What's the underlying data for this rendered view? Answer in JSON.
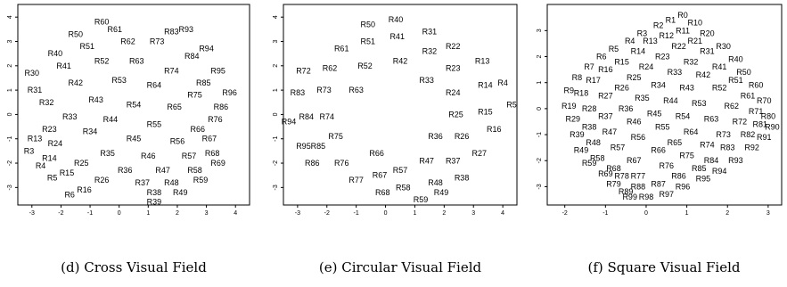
{
  "chart_data": [
    {
      "type": "scatter",
      "caption": "(d) Cross Visual Field",
      "xlim": [
        -3.3,
        4.3
      ],
      "ylim": [
        -3.5,
        4.3
      ],
      "xticks": [
        -3,
        -2,
        -1,
        0,
        1,
        2,
        3,
        4
      ],
      "yticks": [
        -3,
        -2,
        -1,
        0,
        1,
        2,
        3,
        4
      ],
      "points": [
        {
          "label": "R60",
          "x": -0.6,
          "y": 3.8
        },
        {
          "label": "R61",
          "x": -0.15,
          "y": 3.5
        },
        {
          "label": "R50",
          "x": -1.5,
          "y": 3.3
        },
        {
          "label": "R83",
          "x": 1.8,
          "y": 3.4
        },
        {
          "label": "R93",
          "x": 2.3,
          "y": 3.5
        },
        {
          "label": "R51",
          "x": -1.1,
          "y": 2.8
        },
        {
          "label": "R62",
          "x": 0.3,
          "y": 3.0
        },
        {
          "label": "R73",
          "x": 1.3,
          "y": 3.0
        },
        {
          "label": "R94",
          "x": 3.0,
          "y": 2.7
        },
        {
          "label": "R40",
          "x": -2.2,
          "y": 2.5
        },
        {
          "label": "R84",
          "x": 2.5,
          "y": 2.4
        },
        {
          "label": "R52",
          "x": -0.6,
          "y": 2.2
        },
        {
          "label": "R63",
          "x": 0.6,
          "y": 2.2
        },
        {
          "label": "R41",
          "x": -1.9,
          "y": 2.0
        },
        {
          "label": "R74",
          "x": 1.8,
          "y": 1.8
        },
        {
          "label": "R95",
          "x": 3.4,
          "y": 1.8
        },
        {
          "label": "R30",
          "x": -3.0,
          "y": 1.7
        },
        {
          "label": "R53",
          "x": 0.0,
          "y": 1.4
        },
        {
          "label": "R85",
          "x": 2.9,
          "y": 1.3
        },
        {
          "label": "R42",
          "x": -1.5,
          "y": 1.3
        },
        {
          "label": "R64",
          "x": 1.2,
          "y": 1.2
        },
        {
          "label": "R31",
          "x": -2.9,
          "y": 1.0
        },
        {
          "label": "R96",
          "x": 3.8,
          "y": 0.9
        },
        {
          "label": "R75",
          "x": 2.6,
          "y": 0.8
        },
        {
          "label": "R32",
          "x": -2.5,
          "y": 0.5
        },
        {
          "label": "R54",
          "x": 0.5,
          "y": 0.4
        },
        {
          "label": "R43",
          "x": -0.8,
          "y": 0.6
        },
        {
          "label": "R86",
          "x": 3.5,
          "y": 0.3
        },
        {
          "label": "R65",
          "x": 1.9,
          "y": 0.3
        },
        {
          "label": "R33",
          "x": -1.7,
          "y": -0.1
        },
        {
          "label": "R76",
          "x": 3.3,
          "y": -0.2
        },
        {
          "label": "R44",
          "x": -0.3,
          "y": -0.2
        },
        {
          "label": "R55",
          "x": 1.2,
          "y": -0.4
        },
        {
          "label": "R23",
          "x": -2.4,
          "y": -0.6
        },
        {
          "label": "R66",
          "x": 2.7,
          "y": -0.6
        },
        {
          "label": "R34",
          "x": -1.0,
          "y": -0.7
        },
        {
          "label": "R13",
          "x": -2.9,
          "y": -1.0
        },
        {
          "label": "R45",
          "x": 0.5,
          "y": -1.0
        },
        {
          "label": "R56",
          "x": 2.0,
          "y": -1.1
        },
        {
          "label": "R67",
          "x": 3.1,
          "y": -1.0
        },
        {
          "label": "R24",
          "x": -2.2,
          "y": -1.2
        },
        {
          "label": "R3",
          "x": -3.1,
          "y": -1.5
        },
        {
          "label": "R35",
          "x": -0.4,
          "y": -1.6
        },
        {
          "label": "R68",
          "x": 3.2,
          "y": -1.6
        },
        {
          "label": "R14",
          "x": -2.4,
          "y": -1.8
        },
        {
          "label": "R57",
          "x": 2.4,
          "y": -1.7
        },
        {
          "label": "R46",
          "x": 1.0,
          "y": -1.7
        },
        {
          "label": "R25",
          "x": -1.3,
          "y": -2.0
        },
        {
          "label": "R69",
          "x": 3.4,
          "y": -2.0
        },
        {
          "label": "R4",
          "x": -2.7,
          "y": -2.1
        },
        {
          "label": "R36",
          "x": 0.2,
          "y": -2.3
        },
        {
          "label": "R47",
          "x": 1.5,
          "y": -2.3
        },
        {
          "label": "R58",
          "x": 2.6,
          "y": -2.3
        },
        {
          "label": "R15",
          "x": -1.8,
          "y": -2.4
        },
        {
          "label": "R5",
          "x": -2.3,
          "y": -2.6
        },
        {
          "label": "R26",
          "x": -0.6,
          "y": -2.7
        },
        {
          "label": "R37",
          "x": 0.8,
          "y": -2.8
        },
        {
          "label": "R48",
          "x": 1.8,
          "y": -2.8
        },
        {
          "label": "R59",
          "x": 2.8,
          "y": -2.7
        },
        {
          "label": "R16",
          "x": -1.2,
          "y": -3.1
        },
        {
          "label": "R6",
          "x": -1.7,
          "y": -3.3
        },
        {
          "label": "R38",
          "x": 1.2,
          "y": -3.2
        },
        {
          "label": "R49",
          "x": 2.1,
          "y": -3.2
        },
        {
          "label": "R39",
          "x": 1.2,
          "y": -3.6
        }
      ]
    },
    {
      "type": "scatter",
      "caption": "(e) Circular Visual Field",
      "xlim": [
        -3.3,
        4.3
      ],
      "ylim": [
        -3.5,
        4.3
      ],
      "xticks": [
        -3,
        -2,
        -1,
        0,
        1,
        2,
        3,
        4
      ],
      "yticks": [
        -3,
        -2,
        -1,
        0,
        1,
        2,
        3,
        4
      ],
      "points": [
        {
          "label": "R50",
          "x": -0.6,
          "y": 3.7
        },
        {
          "label": "R40",
          "x": 0.35,
          "y": 3.9
        },
        {
          "label": "R31",
          "x": 1.5,
          "y": 3.4
        },
        {
          "label": "R51",
          "x": -0.6,
          "y": 3.0
        },
        {
          "label": "R41",
          "x": 0.4,
          "y": 3.2
        },
        {
          "label": "R22",
          "x": 2.3,
          "y": 2.8
        },
        {
          "label": "R61",
          "x": -1.5,
          "y": 2.7
        },
        {
          "label": "R32",
          "x": 1.5,
          "y": 2.6
        },
        {
          "label": "R42",
          "x": 0.5,
          "y": 2.2
        },
        {
          "label": "R13",
          "x": 3.3,
          "y": 2.2
        },
        {
          "label": "R52",
          "x": -0.7,
          "y": 2.0
        },
        {
          "label": "R62",
          "x": -1.9,
          "y": 1.9
        },
        {
          "label": "R72",
          "x": -2.8,
          "y": 1.8
        },
        {
          "label": "R23",
          "x": 2.3,
          "y": 1.9
        },
        {
          "label": "R33",
          "x": 1.4,
          "y": 1.4
        },
        {
          "label": "R4",
          "x": 4.0,
          "y": 1.3
        },
        {
          "label": "R14",
          "x": 3.4,
          "y": 1.2
        },
        {
          "label": "R63",
          "x": -1.0,
          "y": 1.0
        },
        {
          "label": "R73",
          "x": -2.1,
          "y": 1.0
        },
        {
          "label": "R83",
          "x": -3.0,
          "y": 0.9
        },
        {
          "label": "R24",
          "x": 2.3,
          "y": 0.9
        },
        {
          "label": "R5",
          "x": 4.3,
          "y": 0.4
        },
        {
          "label": "R15",
          "x": 3.4,
          "y": 0.1
        },
        {
          "label": "R25",
          "x": 2.4,
          "y": 0.0
        },
        {
          "label": "R74",
          "x": -2.0,
          "y": -0.1
        },
        {
          "label": "R84",
          "x": -2.7,
          "y": -0.1
        },
        {
          "label": "R94",
          "x": -3.3,
          "y": -0.3
        },
        {
          "label": "R16",
          "x": 3.7,
          "y": -0.6
        },
        {
          "label": "R26",
          "x": 2.6,
          "y": -0.9
        },
        {
          "label": "R36",
          "x": 1.7,
          "y": -0.9
        },
        {
          "label": "R75",
          "x": -1.7,
          "y": -0.9
        },
        {
          "label": "R85",
          "x": -2.3,
          "y": -1.3
        },
        {
          "label": "R95",
          "x": -2.8,
          "y": -1.3
        },
        {
          "label": "R66",
          "x": -0.3,
          "y": -1.6
        },
        {
          "label": "R27",
          "x": 3.2,
          "y": -1.6
        },
        {
          "label": "R37",
          "x": 2.3,
          "y": -1.9
        },
        {
          "label": "R47",
          "x": 1.4,
          "y": -1.9
        },
        {
          "label": "R76",
          "x": -1.5,
          "y": -2.0
        },
        {
          "label": "R86",
          "x": -2.5,
          "y": -2.0
        },
        {
          "label": "R57",
          "x": 0.5,
          "y": -2.3
        },
        {
          "label": "R38",
          "x": 2.6,
          "y": -2.6
        },
        {
          "label": "R67",
          "x": -0.2,
          "y": -2.5
        },
        {
          "label": "R77",
          "x": -1.0,
          "y": -2.7
        },
        {
          "label": "R48",
          "x": 1.7,
          "y": -2.8
        },
        {
          "label": "R58",
          "x": 0.6,
          "y": -3.0
        },
        {
          "label": "R68",
          "x": -0.1,
          "y": -3.2
        },
        {
          "label": "R49",
          "x": 1.9,
          "y": -3.2
        },
        {
          "label": "R59",
          "x": 1.2,
          "y": -3.5
        }
      ]
    },
    {
      "type": "scatter",
      "caption": "(f) Square Visual Field",
      "xlim": [
        -2.3,
        3.2
      ],
      "ylim": [
        -3.5,
        3.8
      ],
      "xticks": [
        -2,
        -1,
        0,
        1,
        2,
        3
      ],
      "yticks": [
        -3,
        -2,
        -1,
        0,
        1,
        2,
        3
      ],
      "points": [
        {
          "label": "R0",
          "x": 0.9,
          "y": 3.6
        },
        {
          "label": "R1",
          "x": 0.6,
          "y": 3.4
        },
        {
          "label": "R2",
          "x": 0.3,
          "y": 3.2
        },
        {
          "label": "R3",
          "x": -0.1,
          "y": 2.9
        },
        {
          "label": "R10",
          "x": 1.2,
          "y": 3.3
        },
        {
          "label": "R11",
          "x": 0.9,
          "y": 3.0
        },
        {
          "label": "R12",
          "x": 0.5,
          "y": 2.8
        },
        {
          "label": "R13",
          "x": 0.1,
          "y": 2.6
        },
        {
          "label": "R4",
          "x": -0.4,
          "y": 2.6
        },
        {
          "label": "R20",
          "x": 1.5,
          "y": 2.9
        },
        {
          "label": "R21",
          "x": 1.2,
          "y": 2.6
        },
        {
          "label": "R22",
          "x": 0.8,
          "y": 2.4
        },
        {
          "label": "R14",
          "x": -0.2,
          "y": 2.2
        },
        {
          "label": "R5",
          "x": -0.8,
          "y": 2.3
        },
        {
          "label": "R31",
          "x": 1.5,
          "y": 2.2
        },
        {
          "label": "R30",
          "x": 1.9,
          "y": 2.4
        },
        {
          "label": "R23",
          "x": 0.4,
          "y": 2.0
        },
        {
          "label": "R15",
          "x": -0.6,
          "y": 1.8
        },
        {
          "label": "R6",
          "x": -1.1,
          "y": 2.0
        },
        {
          "label": "R24",
          "x": 0.0,
          "y": 1.6
        },
        {
          "label": "R32",
          "x": 1.1,
          "y": 1.8
        },
        {
          "label": "R40",
          "x": 2.2,
          "y": 1.9
        },
        {
          "label": "R41",
          "x": 1.8,
          "y": 1.6
        },
        {
          "label": "R7",
          "x": -1.4,
          "y": 1.6
        },
        {
          "label": "R16",
          "x": -1.0,
          "y": 1.5
        },
        {
          "label": "R42",
          "x": 1.4,
          "y": 1.3
        },
        {
          "label": "R33",
          "x": 0.7,
          "y": 1.4
        },
        {
          "label": "R25",
          "x": -0.3,
          "y": 1.2
        },
        {
          "label": "R50",
          "x": 2.4,
          "y": 1.4
        },
        {
          "label": "R51",
          "x": 2.2,
          "y": 1.1
        },
        {
          "label": "R17",
          "x": -1.3,
          "y": 1.1
        },
        {
          "label": "R8",
          "x": -1.7,
          "y": 1.2
        },
        {
          "label": "R26",
          "x": -0.6,
          "y": 0.8
        },
        {
          "label": "R34",
          "x": 0.3,
          "y": 0.9
        },
        {
          "label": "R43",
          "x": 1.0,
          "y": 0.8
        },
        {
          "label": "R52",
          "x": 1.8,
          "y": 0.8
        },
        {
          "label": "R60",
          "x": 2.7,
          "y": 0.9
        },
        {
          "label": "R61",
          "x": 2.5,
          "y": 0.5
        },
        {
          "label": "R27",
          "x": -1.0,
          "y": 0.5
        },
        {
          "label": "R18",
          "x": -1.6,
          "y": 0.6
        },
        {
          "label": "R9",
          "x": -1.9,
          "y": 0.7
        },
        {
          "label": "R35",
          "x": -0.1,
          "y": 0.4
        },
        {
          "label": "R44",
          "x": 0.6,
          "y": 0.3
        },
        {
          "label": "R53",
          "x": 1.3,
          "y": 0.2
        },
        {
          "label": "R62",
          "x": 2.1,
          "y": 0.1
        },
        {
          "label": "R70",
          "x": 2.9,
          "y": 0.3
        },
        {
          "label": "R71",
          "x": 2.7,
          "y": -0.1
        },
        {
          "label": "R36",
          "x": -0.5,
          "y": 0.0
        },
        {
          "label": "R28",
          "x": -1.4,
          "y": 0.0
        },
        {
          "label": "R19",
          "x": -1.9,
          "y": 0.1
        },
        {
          "label": "R80",
          "x": 3.0,
          "y": -0.3
        },
        {
          "label": "R45",
          "x": 0.2,
          "y": -0.2
        },
        {
          "label": "R54",
          "x": 0.9,
          "y": -0.3
        },
        {
          "label": "R63",
          "x": 1.6,
          "y": -0.4
        },
        {
          "label": "R72",
          "x": 2.3,
          "y": -0.5
        },
        {
          "label": "R81",
          "x": 2.8,
          "y": -0.6
        },
        {
          "label": "R90",
          "x": 3.1,
          "y": -0.7
        },
        {
          "label": "R29",
          "x": -1.8,
          "y": -0.4
        },
        {
          "label": "R37",
          "x": -1.0,
          "y": -0.3
        },
        {
          "label": "R46",
          "x": -0.3,
          "y": -0.5
        },
        {
          "label": "R38",
          "x": -1.4,
          "y": -0.7
        },
        {
          "label": "R55",
          "x": 0.4,
          "y": -0.7
        },
        {
          "label": "R64",
          "x": 1.1,
          "y": -0.9
        },
        {
          "label": "R73",
          "x": 1.9,
          "y": -1.0
        },
        {
          "label": "R82",
          "x": 2.5,
          "y": -1.0
        },
        {
          "label": "R91",
          "x": 2.9,
          "y": -1.1
        },
        {
          "label": "R39",
          "x": -1.7,
          "y": -1.0
        },
        {
          "label": "R47",
          "x": -0.9,
          "y": -0.9
        },
        {
          "label": "R56",
          "x": -0.2,
          "y": -1.1
        },
        {
          "label": "R65",
          "x": 0.7,
          "y": -1.3
        },
        {
          "label": "R74",
          "x": 1.5,
          "y": -1.4
        },
        {
          "label": "R83",
          "x": 2.0,
          "y": -1.5
        },
        {
          "label": "R92",
          "x": 2.6,
          "y": -1.5
        },
        {
          "label": "R48",
          "x": -1.3,
          "y": -1.3
        },
        {
          "label": "R49",
          "x": -1.6,
          "y": -1.6
        },
        {
          "label": "R57",
          "x": -0.7,
          "y": -1.5
        },
        {
          "label": "R58",
          "x": -1.2,
          "y": -1.9
        },
        {
          "label": "R66",
          "x": 0.3,
          "y": -1.6
        },
        {
          "label": "R75",
          "x": 1.0,
          "y": -1.8
        },
        {
          "label": "R84",
          "x": 1.6,
          "y": -2.0
        },
        {
          "label": "R93",
          "x": 2.2,
          "y": -2.0
        },
        {
          "label": "R59",
          "x": -1.4,
          "y": -2.1
        },
        {
          "label": "R67",
          "x": -0.3,
          "y": -2.0
        },
        {
          "label": "R68",
          "x": -0.8,
          "y": -2.3
        },
        {
          "label": "R76",
          "x": 0.5,
          "y": -2.2
        },
        {
          "label": "R85",
          "x": 1.3,
          "y": -2.3
        },
        {
          "label": "R94",
          "x": 1.8,
          "y": -2.4
        },
        {
          "label": "R69",
          "x": -1.0,
          "y": -2.5
        },
        {
          "label": "R77",
          "x": -0.2,
          "y": -2.6
        },
        {
          "label": "R78",
          "x": -0.6,
          "y": -2.6
        },
        {
          "label": "R86",
          "x": 0.8,
          "y": -2.6
        },
        {
          "label": "R95",
          "x": 1.4,
          "y": -2.7
        },
        {
          "label": "R79",
          "x": -0.8,
          "y": -2.9
        },
        {
          "label": "R87",
          "x": 0.3,
          "y": -2.9
        },
        {
          "label": "R88",
          "x": -0.2,
          "y": -3.0
        },
        {
          "label": "R96",
          "x": 0.9,
          "y": -3.0
        },
        {
          "label": "R89",
          "x": -0.5,
          "y": -3.2
        },
        {
          "label": "R97",
          "x": 0.5,
          "y": -3.3
        },
        {
          "label": "R98",
          "x": 0.0,
          "y": -3.4
        },
        {
          "label": "R99",
          "x": -0.4,
          "y": -3.4
        }
      ]
    }
  ]
}
